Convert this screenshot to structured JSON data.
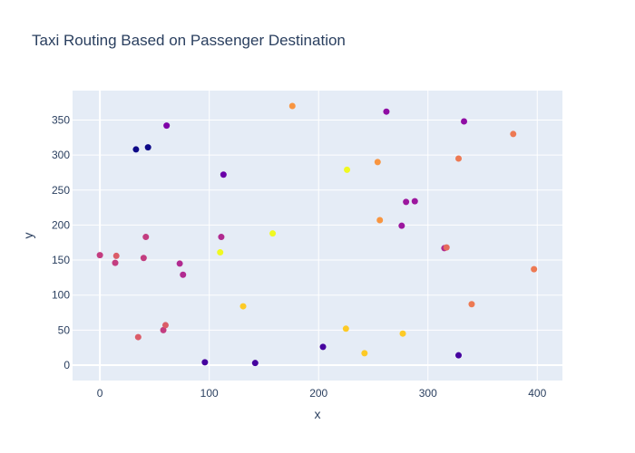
{
  "chart_data": {
    "type": "scatter",
    "title": "Taxi Routing Based on Passenger Destination",
    "xlabel": "x",
    "ylabel": "y",
    "xlim": [
      -25,
      423
    ],
    "ylim": [
      -22,
      392
    ],
    "xticks": [
      0,
      100,
      200,
      300,
      400
    ],
    "yticks": [
      0,
      50,
      100,
      150,
      200,
      250,
      300,
      350
    ],
    "grid": true,
    "legend": "none",
    "colorscale": "plasma",
    "points": [
      {
        "x": 0,
        "y": 157,
        "color": "#c33d80"
      },
      {
        "x": 14,
        "y": 146,
        "color": "#c33d80"
      },
      {
        "x": 15,
        "y": 156,
        "color": "#db5c68"
      },
      {
        "x": 33,
        "y": 308,
        "color": "#0d0887"
      },
      {
        "x": 35,
        "y": 40,
        "color": "#db5c68"
      },
      {
        "x": 40,
        "y": 153,
        "color": "#c33d80"
      },
      {
        "x": 42,
        "y": 183,
        "color": "#c33d80"
      },
      {
        "x": 44,
        "y": 311,
        "color": "#0d0887"
      },
      {
        "x": 58,
        "y": 50,
        "color": "#c33d80"
      },
      {
        "x": 60,
        "y": 57,
        "color": "#db5c68"
      },
      {
        "x": 61,
        "y": 342,
        "color": "#7e03a8"
      },
      {
        "x": 73,
        "y": 145,
        "color": "#b12a90"
      },
      {
        "x": 76,
        "y": 129,
        "color": "#b12a90"
      },
      {
        "x": 96,
        "y": 4,
        "color": "#46039f"
      },
      {
        "x": 110,
        "y": 161,
        "color": "#f0f921"
      },
      {
        "x": 111,
        "y": 183,
        "color": "#b12a90"
      },
      {
        "x": 113,
        "y": 272,
        "color": "#6a00a8"
      },
      {
        "x": 131,
        "y": 84,
        "color": "#fdca26"
      },
      {
        "x": 142,
        "y": 3,
        "color": "#46039f"
      },
      {
        "x": 158,
        "y": 188,
        "color": "#f0f921"
      },
      {
        "x": 176,
        "y": 370,
        "color": "#f89540"
      },
      {
        "x": 204,
        "y": 26,
        "color": "#46039f"
      },
      {
        "x": 225,
        "y": 52,
        "color": "#fdca26"
      },
      {
        "x": 226,
        "y": 279,
        "color": "#f0f921"
      },
      {
        "x": 242,
        "y": 17,
        "color": "#fdca26"
      },
      {
        "x": 254,
        "y": 290,
        "color": "#f89540"
      },
      {
        "x": 256,
        "y": 207,
        "color": "#f89540"
      },
      {
        "x": 262,
        "y": 362,
        "color": "#8f0da4"
      },
      {
        "x": 276,
        "y": 199,
        "color": "#9c179e"
      },
      {
        "x": 277,
        "y": 45,
        "color": "#fdca26"
      },
      {
        "x": 280,
        "y": 233,
        "color": "#9c179e"
      },
      {
        "x": 288,
        "y": 234,
        "color": "#9c179e"
      },
      {
        "x": 315,
        "y": 167,
        "color": "#b12a90"
      },
      {
        "x": 317,
        "y": 168,
        "color": "#e56b5d"
      },
      {
        "x": 328,
        "y": 14,
        "color": "#46039f"
      },
      {
        "x": 328,
        "y": 295,
        "color": "#ed7953"
      },
      {
        "x": 333,
        "y": 348,
        "color": "#8f0da4"
      },
      {
        "x": 340,
        "y": 87,
        "color": "#ed7953"
      },
      {
        "x": 378,
        "y": 330,
        "color": "#ed7953"
      },
      {
        "x": 397,
        "y": 137,
        "color": "#ed7953"
      }
    ]
  }
}
